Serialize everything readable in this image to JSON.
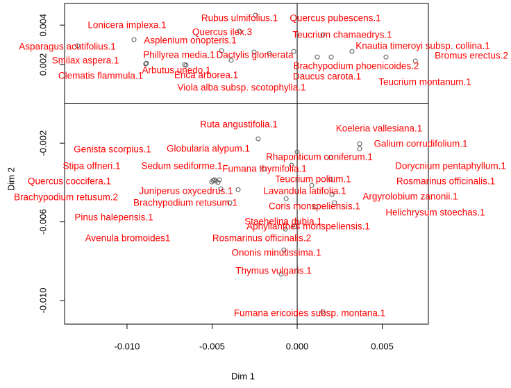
{
  "chart_data": {
    "type": "scatter",
    "xlabel": "Dim 1",
    "ylabel": "Dim 2",
    "xlim": [
      -0.01367,
      0.00771
    ],
    "ylim": [
      -0.0112,
      0.0051
    ],
    "xticks": [
      {
        "value": -0.01,
        "label": "-0.010"
      },
      {
        "value": -0.005,
        "label": "-0.005"
      },
      {
        "value": 0,
        "label": "0.000"
      },
      {
        "value": 0.005,
        "label": "0.005"
      }
    ],
    "yticks": [
      {
        "value": -0.01,
        "label": "-0.010"
      },
      {
        "value": -0.006,
        "label": "-0.006"
      },
      {
        "value": -0.002,
        "label": "-0.002"
      },
      {
        "value": 0.002,
        "label": "0.002"
      },
      {
        "value": 0.004,
        "label": "0.004"
      }
    ],
    "zero_lines": true,
    "point_color": "#555555",
    "label_color": "#ff0000",
    "labels": [
      "Lonicera implexa.1",
      "Asparagus acutifolius.1",
      "Smilax aspera.1",
      "Clematis flammula.1",
      "Asplenium onopteris.1",
      "Phillyrea media.1",
      "Arbutus unedo.1",
      "Rubus ulmifolius.1",
      "Quercus ilex.3",
      "Dactylis glomerata",
      "Erica arborea.1",
      "Viola alba subsp. scotophylla.1",
      "Quercus pubescens.1",
      "Teucrium chamaedrys.1",
      "Knautia timeroyi subsp. collina.1",
      "Brachypodium phoenicoides.2",
      "Daucus carota.1",
      "Bromus erectus.2",
      "Teucrium montanum.1",
      "Ruta angustifolia.1",
      "Koeleria vallesiana.1",
      "Galium corrudifolium.1",
      "Genista scorpius.1",
      "Stipa offneri.1",
      "Globularia alypum.1",
      "Rhaponticum coniferum.1",
      "Sedum sediforme.1",
      "Fumana thymifolia.1",
      "Dorycnium pentaphyllum.1",
      "Quercus coccifera.1",
      "Juniperus oxycedrus.1",
      "Teucrium polium.1",
      "Rosmarinus officinalis.1",
      "Brachypodium retusum.2",
      "Brachypodium retusum.1",
      "Lavandula latifolia.1",
      "Argyrolobium zanonii.1",
      "Coris monspeliensis.1",
      "Helichrysum stoechas.1",
      "Pinus halepensis.1",
      "Staehelina dubia.1",
      "Aphyllanthes monspeliensis.1",
      "Avenula bromoides1",
      "Rosmarinus officinalis.2",
      "Ononis minutissima.1",
      "Thymus vulgaris.1",
      "Fumana ericoides subsp. montana.1"
    ],
    "x": [
      -0.00959,
      -0.0129,
      -0.00886,
      -0.0089,
      -0.00661,
      -0.00445,
      -0.00653,
      -0.00245,
      -0.00339,
      -0.00253,
      -0.00388,
      -0.00163,
      -0.0002,
      0.00151,
      0.00322,
      0.00118,
      0.002,
      0.00694,
      0.00522,
      -0.00229,
      0.00367,
      0.00367,
      -0.00486,
      -0.00457,
      -0.00196,
      0,
      -0.00347,
      -0.00033,
      0.00196,
      -0.00478,
      -0.00449,
      0.00086,
      0.00196,
      -0.00502,
      -0.00396,
      -0.00065,
      0.00204,
      0.00106,
      0.0022,
      -0.00465,
      0,
      -0.00016,
      -0.00494,
      -0.00069,
      -0.00078,
      -0.00094,
      0.00151
    ],
    "values": [
      0.00326,
      0.00295,
      0.00206,
      0.00203,
      0.00199,
      0.0027,
      0.00196,
      0.0045,
      0.00369,
      0.00263,
      0.00221,
      0.00256,
      0.00266,
      0.00351,
      0.00266,
      0.00238,
      0.00238,
      0.00217,
      0.00238,
      -0.00178,
      -0.00203,
      -0.00228,
      -0.00386,
      -0.00386,
      -0.0033,
      -0.00245,
      -0.00436,
      -0.00312,
      -0.00273,
      -0.00393,
      -0.00432,
      -0.00415,
      -0.00383,
      -0.00397,
      -0.00503,
      -0.00482,
      -0.00461,
      -0.00524,
      -0.00503,
      -0.004,
      -0.00602,
      -0.00623,
      -0.0039,
      -0.00637,
      -0.00743,
      -0.00866,
      -0.01057
    ]
  }
}
